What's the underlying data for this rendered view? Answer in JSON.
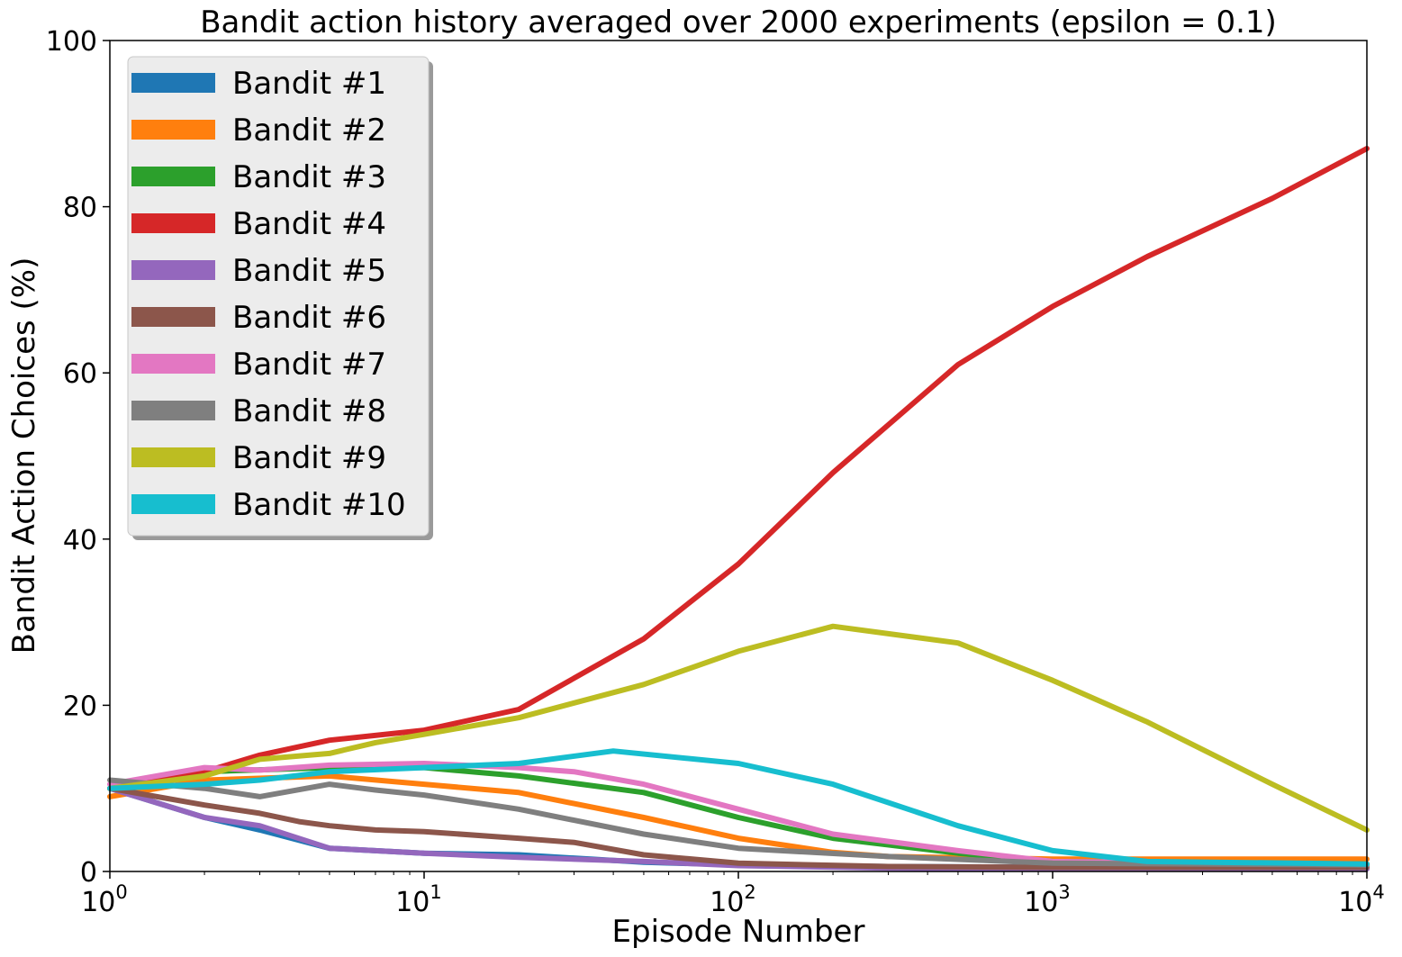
{
  "chart_data": {
    "type": "line",
    "title": "Bandit action history averaged over 2000 experiments (epsilon = 0.1)",
    "xlabel": "Episode Number",
    "ylabel": "Bandit Action Choices (%)",
    "xscale": "log",
    "xlim": [
      1,
      10000
    ],
    "ylim": [
      0,
      100
    ],
    "x_ticks": [
      {
        "value": 1,
        "base": "10",
        "exp": "0"
      },
      {
        "value": 10,
        "base": "10",
        "exp": "1"
      },
      {
        "value": 100,
        "base": "10",
        "exp": "2"
      },
      {
        "value": 1000,
        "base": "10",
        "exp": "3"
      },
      {
        "value": 10000,
        "base": "10",
        "exp": "4"
      }
    ],
    "y_ticks": [
      "0",
      "20",
      "40",
      "60",
      "80",
      "100"
    ],
    "grid": false,
    "legend_position": "top-left",
    "series": [
      {
        "name": "Bandit #1",
        "color": "#1f77b4",
        "x": [
          1,
          2,
          3,
          5,
          10,
          20,
          50,
          100,
          300,
          1000,
          10000
        ],
        "y": [
          10,
          6.5,
          5,
          2.8,
          2.2,
          2,
          1.1,
          0.8,
          0.6,
          0.5,
          0.5
        ]
      },
      {
        "name": "Bandit #2",
        "color": "#ff7f0e",
        "x": [
          1,
          2,
          5,
          10,
          20,
          50,
          100,
          200,
          300,
          1000,
          10000
        ],
        "y": [
          9,
          11,
          11.5,
          10.5,
          9.5,
          6.5,
          4,
          2.3,
          1.8,
          1.5,
          1.5
        ]
      },
      {
        "name": "Bandit #3",
        "color": "#2ca02c",
        "x": [
          1,
          2,
          5,
          10,
          20,
          50,
          100,
          200,
          500,
          1000,
          10000
        ],
        "y": [
          10,
          12,
          12.5,
          12.5,
          11.5,
          9.5,
          6.5,
          4,
          2.2,
          1.2,
          0.9
        ]
      },
      {
        "name": "Bandit #4",
        "color": "#d62728",
        "x": [
          1,
          2,
          3,
          5,
          10,
          20,
          50,
          100,
          200,
          500,
          1000,
          2000,
          5000,
          10000
        ],
        "y": [
          10,
          12,
          14,
          15.8,
          17,
          19.5,
          28,
          37,
          48,
          61,
          68,
          74,
          81,
          87
        ]
      },
      {
        "name": "Bandit #5",
        "color": "#9467bd",
        "x": [
          1,
          2,
          3,
          5,
          10,
          20,
          50,
          100,
          300,
          1000,
          10000
        ],
        "y": [
          10,
          6.5,
          5.5,
          2.8,
          2.2,
          1.7,
          1.2,
          0.7,
          0.4,
          0.3,
          0.3
        ]
      },
      {
        "name": "Bandit #6",
        "color": "#8c564b",
        "x": [
          1,
          2,
          3,
          4,
          5,
          7,
          10,
          20,
          30,
          50,
          100,
          300,
          1000,
          10000
        ],
        "y": [
          10,
          8,
          7,
          6,
          5.5,
          5,
          4.8,
          4,
          3.5,
          2,
          1,
          0.6,
          0.5,
          0.5
        ]
      },
      {
        "name": "Bandit #7",
        "color": "#e377c2",
        "x": [
          1,
          2,
          3,
          5,
          10,
          20,
          30,
          50,
          100,
          200,
          500,
          1000,
          10000
        ],
        "y": [
          10.5,
          12.5,
          12.2,
          12.8,
          13,
          12.5,
          12,
          10.5,
          7.5,
          4.5,
          2.5,
          1.2,
          0.8
        ]
      },
      {
        "name": "Bandit #8",
        "color": "#7f7f7f",
        "x": [
          1,
          2,
          3,
          5,
          7,
          10,
          20,
          50,
          100,
          300,
          1000,
          10000
        ],
        "y": [
          11,
          10,
          9,
          10.5,
          9.8,
          9.2,
          7.5,
          4.5,
          2.8,
          1.8,
          1,
          0.8
        ]
      },
      {
        "name": "Bandit #9",
        "color": "#bcbd22",
        "x": [
          1,
          2,
          3,
          5,
          7,
          10,
          20,
          50,
          100,
          200,
          500,
          1000,
          2000,
          5000,
          10000
        ],
        "y": [
          10,
          11.5,
          13.5,
          14.2,
          15.5,
          16.5,
          18.5,
          22.5,
          26.5,
          29.5,
          27.5,
          23,
          18,
          10.5,
          5
        ]
      },
      {
        "name": "Bandit #10",
        "color": "#17becf",
        "x": [
          1,
          2,
          3,
          5,
          10,
          20,
          40,
          100,
          200,
          500,
          1000,
          2000,
          10000
        ],
        "y": [
          10,
          10.5,
          11,
          12,
          12.5,
          13,
          14.5,
          13,
          10.5,
          5.5,
          2.5,
          1.2,
          0.9
        ]
      }
    ]
  }
}
